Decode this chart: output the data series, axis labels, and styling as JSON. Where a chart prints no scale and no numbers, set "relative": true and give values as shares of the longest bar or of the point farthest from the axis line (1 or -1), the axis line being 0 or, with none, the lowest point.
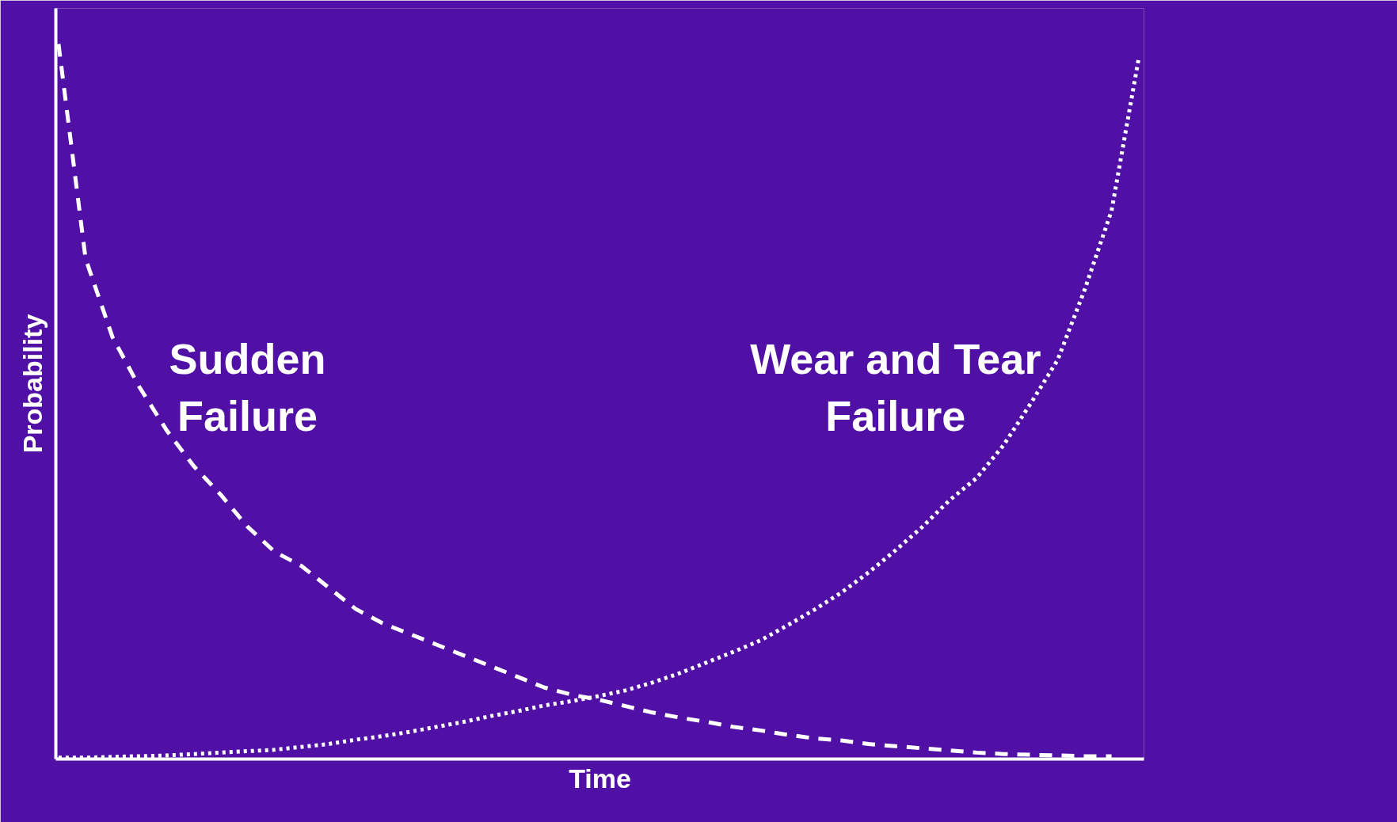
{
  "chart_data": {
    "type": "line",
    "relative": true,
    "xlabel": "Time",
    "ylabel": "Probability",
    "categories": [
      null,
      null,
      null,
      null,
      null,
      null,
      null,
      null,
      null,
      null,
      null,
      null,
      null,
      null,
      null,
      null,
      null,
      null,
      null,
      null,
      null,
      null,
      null,
      null,
      null,
      null,
      null,
      null,
      null,
      null,
      null,
      null,
      null,
      null,
      null,
      null,
      null,
      null,
      null,
      null,
      null
    ],
    "series": [
      {
        "name": "Sudden\nFailure",
        "color": "#ffffff",
        "line_style": "dashed",
        "values": [
          1.0,
          0.7,
          0.59,
          0.52,
          0.46,
          0.41,
          0.37,
          0.325,
          0.29,
          0.27,
          0.24,
          0.21,
          0.19,
          0.175,
          0.16,
          0.145,
          0.13,
          0.115,
          0.1,
          0.09,
          0.083,
          0.074,
          0.065,
          0.058,
          0.052,
          0.045,
          0.04,
          0.034,
          0.029,
          0.026,
          0.021,
          0.018,
          0.015,
          0.012,
          0.009,
          0.007,
          0.006,
          0.005,
          0.004,
          0.004,
          null
        ]
      },
      {
        "name": "Wear and Tear\nFailure",
        "color": "#ffffff",
        "line_style": "dotted",
        "values": [
          0.002,
          0.002,
          0.003,
          0.004,
          0.005,
          0.007,
          0.009,
          0.011,
          0.013,
          0.017,
          0.021,
          0.027,
          0.032,
          0.038,
          0.045,
          0.052,
          0.06,
          0.067,
          0.075,
          0.081,
          0.088,
          0.096,
          0.107,
          0.12,
          0.135,
          0.15,
          0.166,
          0.187,
          0.209,
          0.233,
          0.261,
          0.292,
          0.325,
          0.362,
          0.393,
          0.439,
          0.497,
          0.558,
          0.656,
          0.767,
          0.979
        ]
      }
    ],
    "marker": "none",
    "legend": false,
    "grid": false
  }
}
